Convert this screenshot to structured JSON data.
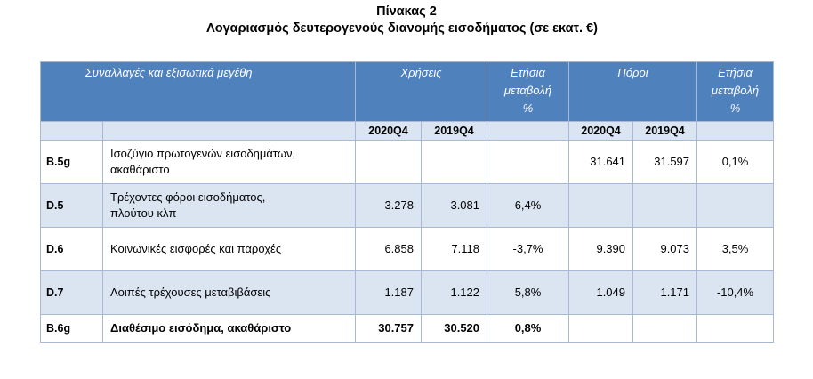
{
  "title": "Πίνακας 2",
  "subtitle": "Λογαριασμός δευτερογενούς διανομής εισοδήματος (σε εκατ. €)",
  "header": {
    "transactions": "Συναλλαγές και εξισωτικά μεγέθη",
    "uses": "Χρήσεις",
    "resources": "Πόροι",
    "annual_change_line1": "Ετήσια",
    "annual_change_line2": "μεταβολή",
    "annual_change_line3": "%",
    "period_current": "2020Q4",
    "period_previous": "2019Q4"
  },
  "rows": [
    {
      "code": "B.5g",
      "desc_line1": "Ισοζύγιο πρωτογενών εισοδημάτων,",
      "desc_line2": "ακαθάριστο",
      "uses_cur": "",
      "uses_prev": "",
      "uses_change": "",
      "res_cur": "31.641",
      "res_prev": "31.597",
      "res_change": "0,1%"
    },
    {
      "code": "D.5",
      "desc_line1": "Τρέχοντες φόροι εισοδήματος,",
      "desc_line2": "πλούτου κλπ",
      "uses_cur": "3.278",
      "uses_prev": "3.081",
      "uses_change": "6,4%",
      "res_cur": "",
      "res_prev": "",
      "res_change": ""
    },
    {
      "code": "D.6",
      "desc_line1": "Κοινωνικές εισφορές και παροχές",
      "desc_line2": "",
      "uses_cur": "6.858",
      "uses_prev": "7.118",
      "uses_change": "-3,7%",
      "res_cur": "9.390",
      "res_prev": "9.073",
      "res_change": "3,5%"
    },
    {
      "code": "D.7",
      "desc_line1": "Λοιπές τρέχουσες μεταβιβάσεις",
      "desc_line2": "",
      "uses_cur": "1.187",
      "uses_prev": "1.122",
      "uses_change": "5,8%",
      "res_cur": "1.049",
      "res_prev": "1.171",
      "res_change": "-10,4%"
    },
    {
      "code": "B.6g",
      "desc_line1": "Διαθέσιμο εισόδημα, ακαθάριστο",
      "desc_line2": "",
      "uses_cur": "30.757",
      "uses_prev": "30.520",
      "uses_change": "0,8%",
      "res_cur": "",
      "res_prev": "",
      "res_change": ""
    }
  ]
}
